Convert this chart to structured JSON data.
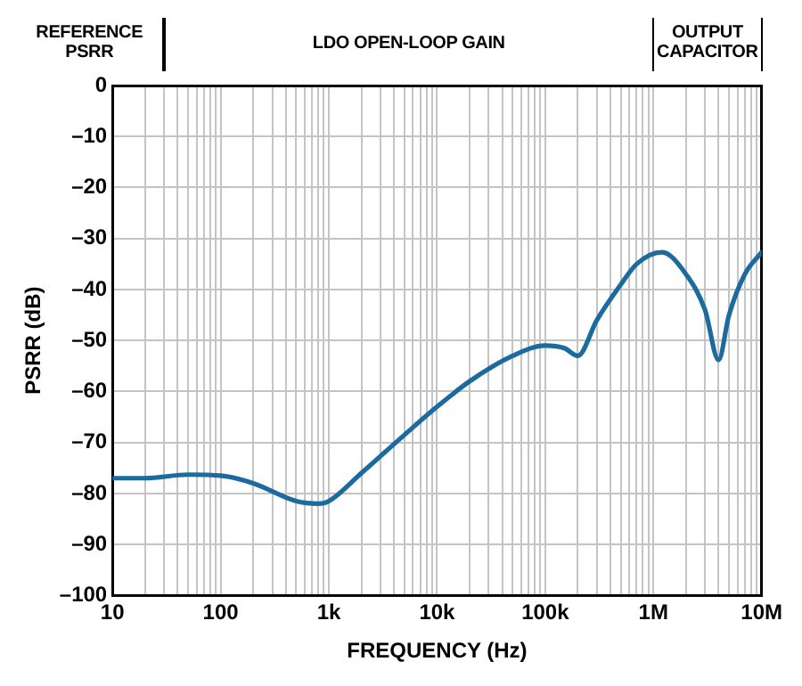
{
  "chart_data": {
    "type": "line",
    "xlabel": "FREQUENCY (Hz)",
    "ylabel": "PSRR (dB)",
    "log": "x",
    "grid": true,
    "legend": false,
    "marker": "none",
    "line_style": "solid",
    "xlim": [
      10,
      10000000
    ],
    "xticks": [
      {
        "value": 10,
        "label": "10"
      },
      {
        "value": 20,
        "label": null
      },
      {
        "value": 30,
        "label": null
      },
      {
        "value": 40,
        "label": null
      },
      {
        "value": 50,
        "label": null
      },
      {
        "value": 60,
        "label": null
      },
      {
        "value": 70,
        "label": null
      },
      {
        "value": 80,
        "label": null
      },
      {
        "value": 90,
        "label": null
      },
      {
        "value": 100,
        "label": "100"
      },
      {
        "value": 200,
        "label": null
      },
      {
        "value": 300,
        "label": null
      },
      {
        "value": 400,
        "label": null
      },
      {
        "value": 500,
        "label": null
      },
      {
        "value": 600,
        "label": null
      },
      {
        "value": 700,
        "label": null
      },
      {
        "value": 800,
        "label": null
      },
      {
        "value": 900,
        "label": null
      },
      {
        "value": 1000,
        "label": "1k"
      },
      {
        "value": 2000,
        "label": null
      },
      {
        "value": 3000,
        "label": null
      },
      {
        "value": 4000,
        "label": null
      },
      {
        "value": 5000,
        "label": null
      },
      {
        "value": 6000,
        "label": null
      },
      {
        "value": 7000,
        "label": null
      },
      {
        "value": 8000,
        "label": null
      },
      {
        "value": 9000,
        "label": null
      },
      {
        "value": 10000,
        "label": "10k"
      },
      {
        "value": 20000,
        "label": null
      },
      {
        "value": 30000,
        "label": null
      },
      {
        "value": 40000,
        "label": null
      },
      {
        "value": 50000,
        "label": null
      },
      {
        "value": 60000,
        "label": null
      },
      {
        "value": 70000,
        "label": null
      },
      {
        "value": 80000,
        "label": null
      },
      {
        "value": 90000,
        "label": null
      },
      {
        "value": 100000,
        "label": "100k"
      },
      {
        "value": 200000,
        "label": null
      },
      {
        "value": 300000,
        "label": null
      },
      {
        "value": 400000,
        "label": null
      },
      {
        "value": 500000,
        "label": null
      },
      {
        "value": 600000,
        "label": null
      },
      {
        "value": 700000,
        "label": null
      },
      {
        "value": 800000,
        "label": null
      },
      {
        "value": 900000,
        "label": null
      },
      {
        "value": 1000000,
        "label": "1M"
      },
      {
        "value": 2000000,
        "label": null
      },
      {
        "value": 3000000,
        "label": null
      },
      {
        "value": 4000000,
        "label": null
      },
      {
        "value": 5000000,
        "label": null
      },
      {
        "value": 6000000,
        "label": null
      },
      {
        "value": 7000000,
        "label": null
      },
      {
        "value": 8000000,
        "label": null
      },
      {
        "value": 9000000,
        "label": null
      },
      {
        "value": 10000000,
        "label": "10M"
      }
    ],
    "ylim": [
      -100,
      0
    ],
    "yticks": [
      {
        "value": -100,
        "label": "–100"
      },
      {
        "value": -90,
        "label": "–90"
      },
      {
        "value": -80,
        "label": "–80"
      },
      {
        "value": -70,
        "label": "–70"
      },
      {
        "value": -60,
        "label": "–60"
      },
      {
        "value": -50,
        "label": "–50"
      },
      {
        "value": -40,
        "label": "–40"
      },
      {
        "value": -30,
        "label": "–30"
      },
      {
        "value": -20,
        "label": "–20"
      },
      {
        "value": -10,
        "label": "–10"
      },
      0
    ],
    "annotations": [
      "REFERENCE PSRR",
      "LDO OPEN-LOOP GAIN",
      "OUTPUT CAPACITOR"
    ],
    "series": [
      {
        "color": "#1b6b9e",
        "x": [
          10,
          20,
          50,
          100,
          200,
          500,
          800,
          1000,
          2000,
          5000,
          10000,
          20000,
          50000,
          100000,
          150000,
          200000,
          300000,
          500000,
          700000,
          1200000,
          2000000,
          3000000,
          4000000,
          5000000,
          7000000,
          10000000
        ],
        "values": [
          -77,
          -77,
          -76.3,
          -76.5,
          -78,
          -81.5,
          -82,
          -81.5,
          -76,
          -68.5,
          -63,
          -58,
          -53,
          -51,
          -51.5,
          -53,
          -46,
          -39,
          -35,
          -32.7,
          -37,
          -44,
          -53.8,
          -45,
          -37,
          -32.7
        ]
      }
    ]
  }
}
